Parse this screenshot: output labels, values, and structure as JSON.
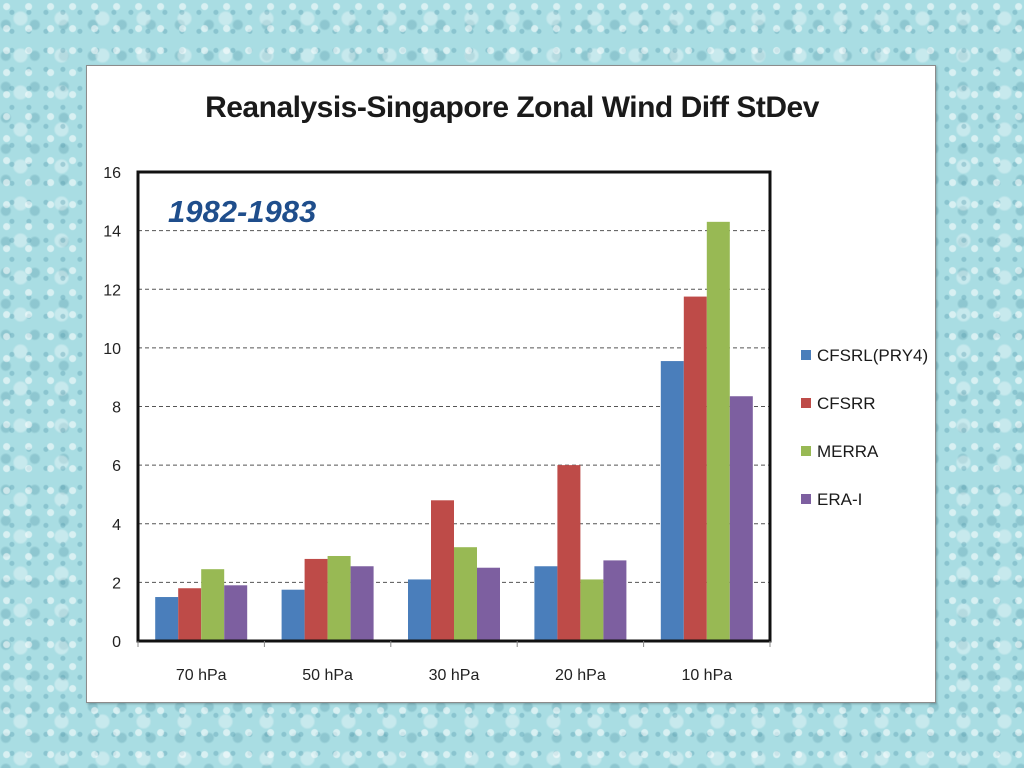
{
  "chart_data": {
    "type": "bar",
    "title": "Reanalysis-Singapore Zonal Wind Diff StDev",
    "annotation": "1982-1983",
    "categories": [
      "70 hPa",
      "50 hPa",
      "30 hPa",
      "20 hPa",
      "10 hPa"
    ],
    "series": [
      {
        "name": "CFSRL(PRY4)",
        "color": "#4a7ebb",
        "values": [
          1.5,
          1.75,
          2.1,
          2.55,
          9.55
        ]
      },
      {
        "name": "CFSRR",
        "color": "#be4b48",
        "values": [
          1.8,
          2.8,
          4.8,
          6.0,
          11.75
        ]
      },
      {
        "name": "MERRA",
        "color": "#98b954",
        "values": [
          2.45,
          2.9,
          3.2,
          2.1,
          14.3
        ]
      },
      {
        "name": "ERA-I",
        "color": "#7d5fa0",
        "values": [
          1.9,
          2.55,
          2.5,
          2.75,
          8.35
        ]
      }
    ],
    "ylim": [
      0,
      16
    ],
    "yticks": [
      0,
      2,
      4,
      6,
      8,
      10,
      12,
      14,
      16
    ],
    "grid": true,
    "legend": "right",
    "xlabel": "",
    "ylabel": ""
  }
}
